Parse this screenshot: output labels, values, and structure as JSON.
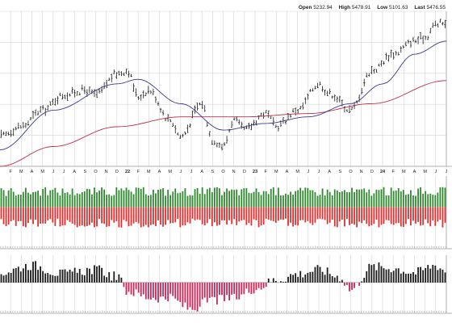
{
  "quote": {
    "open_label": "Open",
    "open_value": "5232.94",
    "high_label": "High",
    "high_value": "5478.91",
    "low_label": "Low",
    "low_value": "5101.63",
    "last_label": "Last",
    "last_value": "5476.55"
  },
  "colors": {
    "price_bars": "#1a1a1a",
    "ma_fast": "#3a3a8c",
    "ma_slow": "#c0304a",
    "advancers": "#2f8a2f",
    "decliners": "#e03030",
    "osc_positive": "#1a1a1a",
    "osc_negative": "#c8285a",
    "grid": "#d4d4d4",
    "dotted_line": "#555555"
  },
  "chart_data": {
    "type": "line",
    "x_tick_labels": [
      "F",
      "M",
      "A",
      "M",
      "J",
      "J",
      "A",
      "S",
      "O",
      "N",
      "D",
      "22",
      "F",
      "M",
      "A",
      "M",
      "J",
      "J",
      "A",
      "S",
      "O",
      "N",
      "D",
      "23",
      "F",
      "M",
      "A",
      "M",
      "J",
      "J",
      "A",
      "S",
      "O",
      "N",
      "D",
      "24",
      "F",
      "M",
      "A",
      "M",
      "J",
      "J"
    ],
    "date_range": [
      "2021-01",
      "2024-07"
    ],
    "grid": true,
    "price": {
      "anchors": [
        [
          "2021-01",
          3750
        ],
        [
          "2021-03",
          3900
        ],
        [
          "2021-05",
          4150
        ],
        [
          "2021-07",
          4380
        ],
        [
          "2021-09",
          4450
        ],
        [
          "2021-10",
          4380
        ],
        [
          "2021-12",
          4700
        ],
        [
          "2022-01",
          4750
        ],
        [
          "2022-02",
          4350
        ],
        [
          "2022-03",
          4450
        ],
        [
          "2022-05",
          4000
        ],
        [
          "2022-06",
          3750
        ],
        [
          "2022-08",
          4250
        ],
        [
          "2022-09",
          3700
        ],
        [
          "2022-10",
          3600
        ],
        [
          "2022-11",
          4000
        ],
        [
          "2022-12",
          3850
        ],
        [
          "2023-02",
          4100
        ],
        [
          "2023-03",
          3900
        ],
        [
          "2023-05",
          4150
        ],
        [
          "2023-07",
          4550
        ],
        [
          "2023-08",
          4400
        ],
        [
          "2023-10",
          4150
        ],
        [
          "2023-12",
          4750
        ],
        [
          "2024-02",
          5000
        ],
        [
          "2024-04",
          5200
        ],
        [
          "2024-05",
          5250
        ],
        [
          "2024-06",
          5450
        ],
        [
          "2024-07",
          5476.55
        ]
      ],
      "ma_fast_anchors": [
        [
          "2021-01",
          3550
        ],
        [
          "2021-06",
          4150
        ],
        [
          "2021-12",
          4550
        ],
        [
          "2022-02",
          4620
        ],
        [
          "2022-06",
          4250
        ],
        [
          "2022-10",
          3850
        ],
        [
          "2023-02",
          3950
        ],
        [
          "2023-06",
          4050
        ],
        [
          "2023-10",
          4250
        ],
        [
          "2024-01",
          4550
        ],
        [
          "2024-04",
          5000
        ],
        [
          "2024-07",
          5200
        ]
      ],
      "ma_slow_anchors": [
        [
          "2021-01",
          3300
        ],
        [
          "2021-06",
          3600
        ],
        [
          "2021-12",
          3900
        ],
        [
          "2022-06",
          4050
        ],
        [
          "2022-12",
          4050
        ],
        [
          "2023-06",
          4100
        ],
        [
          "2023-12",
          4250
        ],
        [
          "2024-07",
          4600
        ]
      ],
      "ylim": [
        3300,
        5650
      ]
    },
    "breadth": {
      "advancers_share_range": [
        0.3,
        0.6
      ],
      "total_scale": [
        0.8,
        1.0
      ]
    },
    "oscillator": {
      "anchors": [
        [
          "2021-01",
          0.35
        ],
        [
          "2021-04",
          0.6
        ],
        [
          "2021-07",
          0.3
        ],
        [
          "2021-10",
          0.45
        ],
        [
          "2021-12",
          0.2
        ],
        [
          "2022-01",
          -0.3
        ],
        [
          "2022-03",
          -0.5
        ],
        [
          "2022-05",
          -0.55
        ],
        [
          "2022-07",
          -0.9
        ],
        [
          "2022-09",
          -0.6
        ],
        [
          "2022-11",
          -0.55
        ],
        [
          "2023-01",
          -0.2
        ],
        [
          "2023-03",
          0.1
        ],
        [
          "2023-05",
          0.3
        ],
        [
          "2023-07",
          0.45
        ],
        [
          "2023-09",
          0.2
        ],
        [
          "2023-10",
          -0.25
        ],
        [
          "2023-12",
          0.55
        ],
        [
          "2024-02",
          0.5
        ],
        [
          "2024-04",
          0.35
        ],
        [
          "2024-06",
          0.6
        ],
        [
          "2024-07",
          0.4
        ]
      ],
      "ylim": [
        -1,
        1
      ]
    }
  }
}
